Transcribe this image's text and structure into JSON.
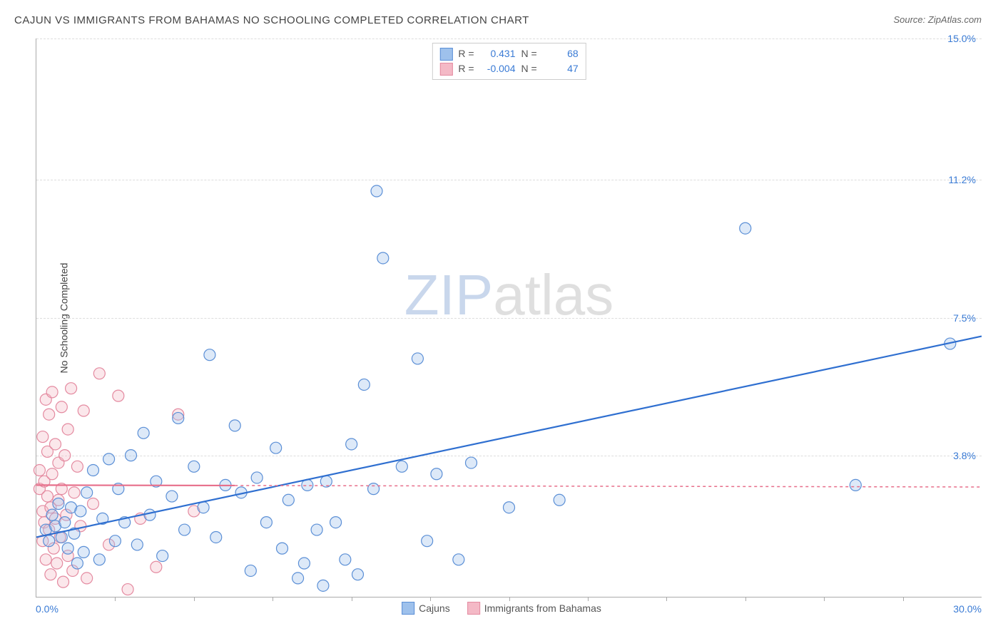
{
  "title": "CAJUN VS IMMIGRANTS FROM BAHAMAS NO SCHOOLING COMPLETED CORRELATION CHART",
  "source": "Source: ZipAtlas.com",
  "y_axis_label": "No Schooling Completed",
  "watermark_a": "ZIP",
  "watermark_b": "atlas",
  "chart": {
    "type": "scatter",
    "xlim": [
      0.0,
      30.0
    ],
    "ylim": [
      0.0,
      15.0
    ],
    "x_min_label": "0.0%",
    "x_max_label": "30.0%",
    "y_ticks": [
      {
        "v": 3.8,
        "label": "3.8%"
      },
      {
        "v": 7.5,
        "label": "7.5%"
      },
      {
        "v": 11.2,
        "label": "11.2%"
      },
      {
        "v": 15.0,
        "label": "15.0%"
      }
    ],
    "x_minor_ticks": [
      2.5,
      5.0,
      7.5,
      10.0,
      12.5,
      15.0,
      17.5,
      20.0,
      22.5,
      25.0,
      27.5
    ],
    "background_color": "#ffffff",
    "grid_color": "#dddddd",
    "marker_radius": 8,
    "marker_stroke_width": 1.2,
    "marker_fill_opacity": 0.35,
    "fit_line_width": 2.2
  },
  "stats": {
    "series1": {
      "R_label": "R =",
      "R": "0.431",
      "N_label": "N =",
      "N": "68"
    },
    "series2": {
      "R_label": "R =",
      "R": "-0.004",
      "N_label": "N =",
      "N": "47"
    }
  },
  "legend": {
    "series1_label": "Cajuns",
    "series2_label": "Immigrants from Bahamas"
  },
  "series1": {
    "name": "Cajuns",
    "color_fill": "#9ec1ec",
    "color_stroke": "#5b8fd6",
    "fit_line_color": "#2f6fd0",
    "fit_y_at_xmin": 1.6,
    "fit_y_at_xmax": 7.0,
    "fit_dash": "none",
    "points": [
      [
        0.3,
        1.8
      ],
      [
        0.4,
        1.5
      ],
      [
        0.5,
        2.2
      ],
      [
        0.6,
        1.9
      ],
      [
        0.7,
        2.5
      ],
      [
        0.8,
        1.6
      ],
      [
        0.9,
        2.0
      ],
      [
        1.0,
        1.3
      ],
      [
        1.1,
        2.4
      ],
      [
        1.2,
        1.7
      ],
      [
        1.3,
        0.9
      ],
      [
        1.4,
        2.3
      ],
      [
        1.5,
        1.2
      ],
      [
        1.6,
        2.8
      ],
      [
        1.8,
        3.4
      ],
      [
        2.0,
        1.0
      ],
      [
        2.1,
        2.1
      ],
      [
        2.3,
        3.7
      ],
      [
        2.5,
        1.5
      ],
      [
        2.6,
        2.9
      ],
      [
        2.8,
        2.0
      ],
      [
        3.0,
        3.8
      ],
      [
        3.2,
        1.4
      ],
      [
        3.4,
        4.4
      ],
      [
        3.6,
        2.2
      ],
      [
        3.8,
        3.1
      ],
      [
        4.0,
        1.1
      ],
      [
        4.3,
        2.7
      ],
      [
        4.5,
        4.8
      ],
      [
        4.7,
        1.8
      ],
      [
        5.0,
        3.5
      ],
      [
        5.3,
        2.4
      ],
      [
        5.5,
        6.5
      ],
      [
        5.7,
        1.6
      ],
      [
        6.0,
        3.0
      ],
      [
        6.3,
        4.6
      ],
      [
        6.5,
        2.8
      ],
      [
        6.8,
        0.7
      ],
      [
        7.0,
        3.2
      ],
      [
        7.3,
        2.0
      ],
      [
        7.6,
        4.0
      ],
      [
        7.8,
        1.3
      ],
      [
        8.0,
        2.6
      ],
      [
        8.3,
        0.5
      ],
      [
        8.6,
        3.0
      ],
      [
        8.9,
        1.8
      ],
      [
        9.1,
        0.3
      ],
      [
        9.2,
        3.1
      ],
      [
        9.5,
        2.0
      ],
      [
        9.8,
        1.0
      ],
      [
        10.0,
        4.1
      ],
      [
        10.2,
        0.6
      ],
      [
        10.4,
        5.7
      ],
      [
        10.7,
        2.9
      ],
      [
        10.8,
        10.9
      ],
      [
        11.0,
        9.1
      ],
      [
        11.6,
        3.5
      ],
      [
        12.1,
        6.4
      ],
      [
        12.4,
        1.5
      ],
      [
        12.7,
        3.3
      ],
      [
        13.4,
        1.0
      ],
      [
        13.8,
        3.6
      ],
      [
        15.0,
        2.4
      ],
      [
        16.6,
        2.6
      ],
      [
        22.5,
        9.9
      ],
      [
        26.0,
        3.0
      ],
      [
        29.0,
        6.8
      ],
      [
        8.5,
        0.9
      ]
    ]
  },
  "series2": {
    "name": "Immigrants from Bahamas",
    "color_fill": "#f4b9c6",
    "color_stroke": "#e48aa0",
    "fit_line_color": "#e76e8a",
    "fit_y_at_xmin": 3.0,
    "fit_y_at_xmax": 2.95,
    "fit_dash_right": "4 4",
    "fit_split_x": 6.3,
    "points": [
      [
        0.1,
        2.9
      ],
      [
        0.1,
        3.4
      ],
      [
        0.2,
        2.3
      ],
      [
        0.2,
        4.3
      ],
      [
        0.2,
        1.5
      ],
      [
        0.25,
        3.1
      ],
      [
        0.25,
        2.0
      ],
      [
        0.3,
        5.3
      ],
      [
        0.3,
        1.0
      ],
      [
        0.35,
        2.7
      ],
      [
        0.35,
        3.9
      ],
      [
        0.4,
        1.8
      ],
      [
        0.4,
        4.9
      ],
      [
        0.45,
        2.4
      ],
      [
        0.45,
        0.6
      ],
      [
        0.5,
        3.3
      ],
      [
        0.5,
        5.5
      ],
      [
        0.55,
        1.3
      ],
      [
        0.6,
        2.1
      ],
      [
        0.6,
        4.1
      ],
      [
        0.65,
        0.9
      ],
      [
        0.7,
        3.6
      ],
      [
        0.7,
        2.6
      ],
      [
        0.75,
        1.6
      ],
      [
        0.8,
        5.1
      ],
      [
        0.8,
        2.9
      ],
      [
        0.85,
        0.4
      ],
      [
        0.9,
        3.8
      ],
      [
        0.95,
        2.2
      ],
      [
        1.0,
        4.5
      ],
      [
        1.0,
        1.1
      ],
      [
        1.1,
        5.6
      ],
      [
        1.15,
        0.7
      ],
      [
        1.2,
        2.8
      ],
      [
        1.3,
        3.5
      ],
      [
        1.4,
        1.9
      ],
      [
        1.5,
        5.0
      ],
      [
        1.6,
        0.5
      ],
      [
        1.8,
        2.5
      ],
      [
        2.0,
        6.0
      ],
      [
        2.3,
        1.4
      ],
      [
        2.6,
        5.4
      ],
      [
        2.9,
        0.2
      ],
      [
        3.3,
        2.1
      ],
      [
        3.8,
        0.8
      ],
      [
        4.5,
        4.9
      ],
      [
        5.0,
        2.3
      ]
    ]
  }
}
